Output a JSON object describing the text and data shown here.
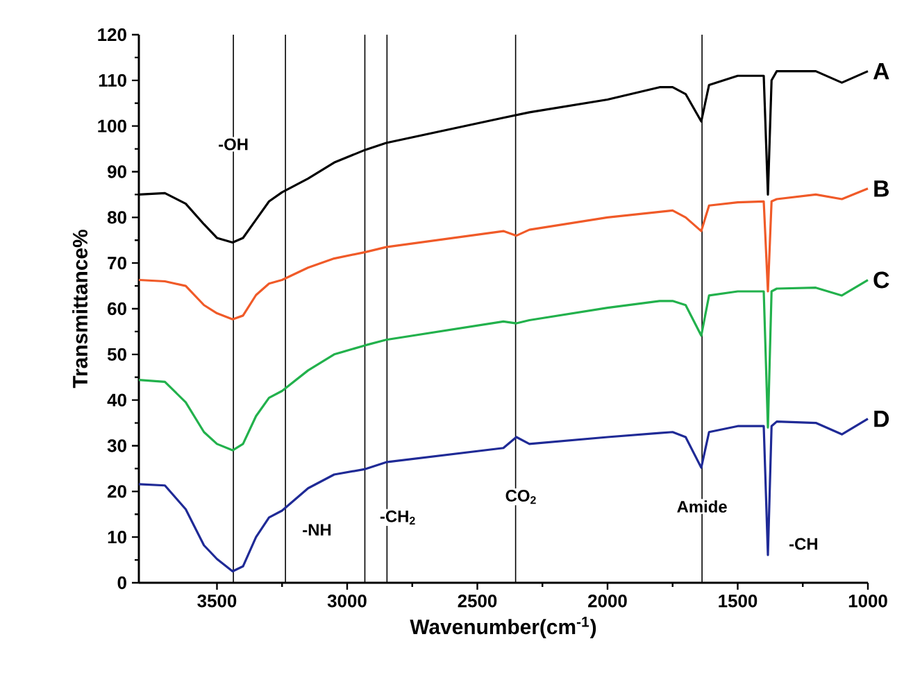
{
  "chart_data": {
    "type": "line",
    "xlabel": "Wavenumber(cm$^{-1}$)",
    "ylabel": "Transmittance%",
    "xlim": [
      3800,
      1000
    ],
    "ylim": [
      0,
      120
    ],
    "xticks": [
      3500,
      3000,
      2500,
      2000,
      1500,
      1000
    ],
    "yticks": [
      0,
      10,
      20,
      30,
      40,
      50,
      60,
      70,
      80,
      90,
      100,
      110,
      120
    ],
    "x": [
      3800,
      3700,
      3620,
      3550,
      3500,
      3440,
      3400,
      3350,
      3300,
      3250,
      3150,
      3050,
      2930,
      2850,
      2400,
      2350,
      2300,
      2000,
      1800,
      1750,
      1700,
      1640,
      1610,
      1500,
      1400,
      1384,
      1370,
      1350,
      1200,
      1100,
      1000
    ],
    "series": [
      {
        "name": "A",
        "color": "#000000",
        "values": [
          85,
          85.3,
          83,
          78.5,
          75.5,
          74.5,
          75.5,
          79.5,
          83.5,
          85.5,
          88.5,
          92,
          94.8,
          96.3,
          101.8,
          102.4,
          103,
          105.8,
          108.5,
          108.5,
          107,
          101,
          109,
          111,
          111,
          85,
          110,
          112,
          112,
          109.5,
          112
        ]
      },
      {
        "name": "B",
        "color": "#f05a28",
        "values": [
          66.3,
          66,
          65,
          60.8,
          59,
          57.7,
          58.5,
          63,
          65.5,
          66.3,
          69,
          71,
          72.4,
          73.5,
          77,
          76,
          77.3,
          80,
          81.2,
          81.5,
          80,
          77,
          82.6,
          83.3,
          83.5,
          63.8,
          83.5,
          84,
          85,
          84,
          86.3
        ]
      },
      {
        "name": "C",
        "color": "#22b14c",
        "values": [
          44.4,
          44,
          39.5,
          33,
          30.4,
          29,
          30.4,
          36.5,
          40.5,
          42,
          46.5,
          50,
          52,
          53.2,
          57.2,
          56.8,
          57.5,
          60.2,
          61.7,
          61.7,
          60.8,
          54.1,
          62.9,
          63.8,
          63.8,
          34,
          63.8,
          64.4,
          64.6,
          62.9,
          66.3
        ]
      },
      {
        "name": "D",
        "color": "#1f2a96",
        "values": [
          21.6,
          21.3,
          16.1,
          8.2,
          5.2,
          2.5,
          3.6,
          10,
          14.3,
          15.8,
          20.7,
          23.7,
          24.9,
          26.4,
          29.5,
          31.9,
          30.4,
          31.9,
          32.8,
          33,
          31.9,
          25.2,
          33,
          34.3,
          34.3,
          6.1,
          34.3,
          35.3,
          35,
          32.5,
          35.9
        ]
      }
    ],
    "ref_lines": [
      {
        "axis": "x",
        "value": 3437,
        "color": "#000000"
      },
      {
        "axis": "x",
        "value": 3237,
        "color": "#000000"
      },
      {
        "axis": "x",
        "value": 2932,
        "color": "#000000"
      },
      {
        "axis": "x",
        "value": 2847,
        "color": "#000000"
      },
      {
        "axis": "x",
        "value": 2353,
        "color": "#000000"
      },
      {
        "axis": "x",
        "value": 1637,
        "color": "#000000"
      }
    ],
    "annotations": [
      {
        "text": "-OH",
        "x": 3437,
        "y": 96
      },
      {
        "text": "-NH",
        "x": 3116,
        "y": 11.6
      },
      {
        "text": "-CH$_{2}$",
        "x": 2805,
        "y": 14.3
      },
      {
        "text": "CO$_{2}$",
        "x": 2332,
        "y": 18.8
      },
      {
        "text": "Amide",
        "x": 1637,
        "y": 16.7
      },
      {
        "text": "-CH",
        "x": 1247,
        "y": 8.5
      }
    ]
  }
}
